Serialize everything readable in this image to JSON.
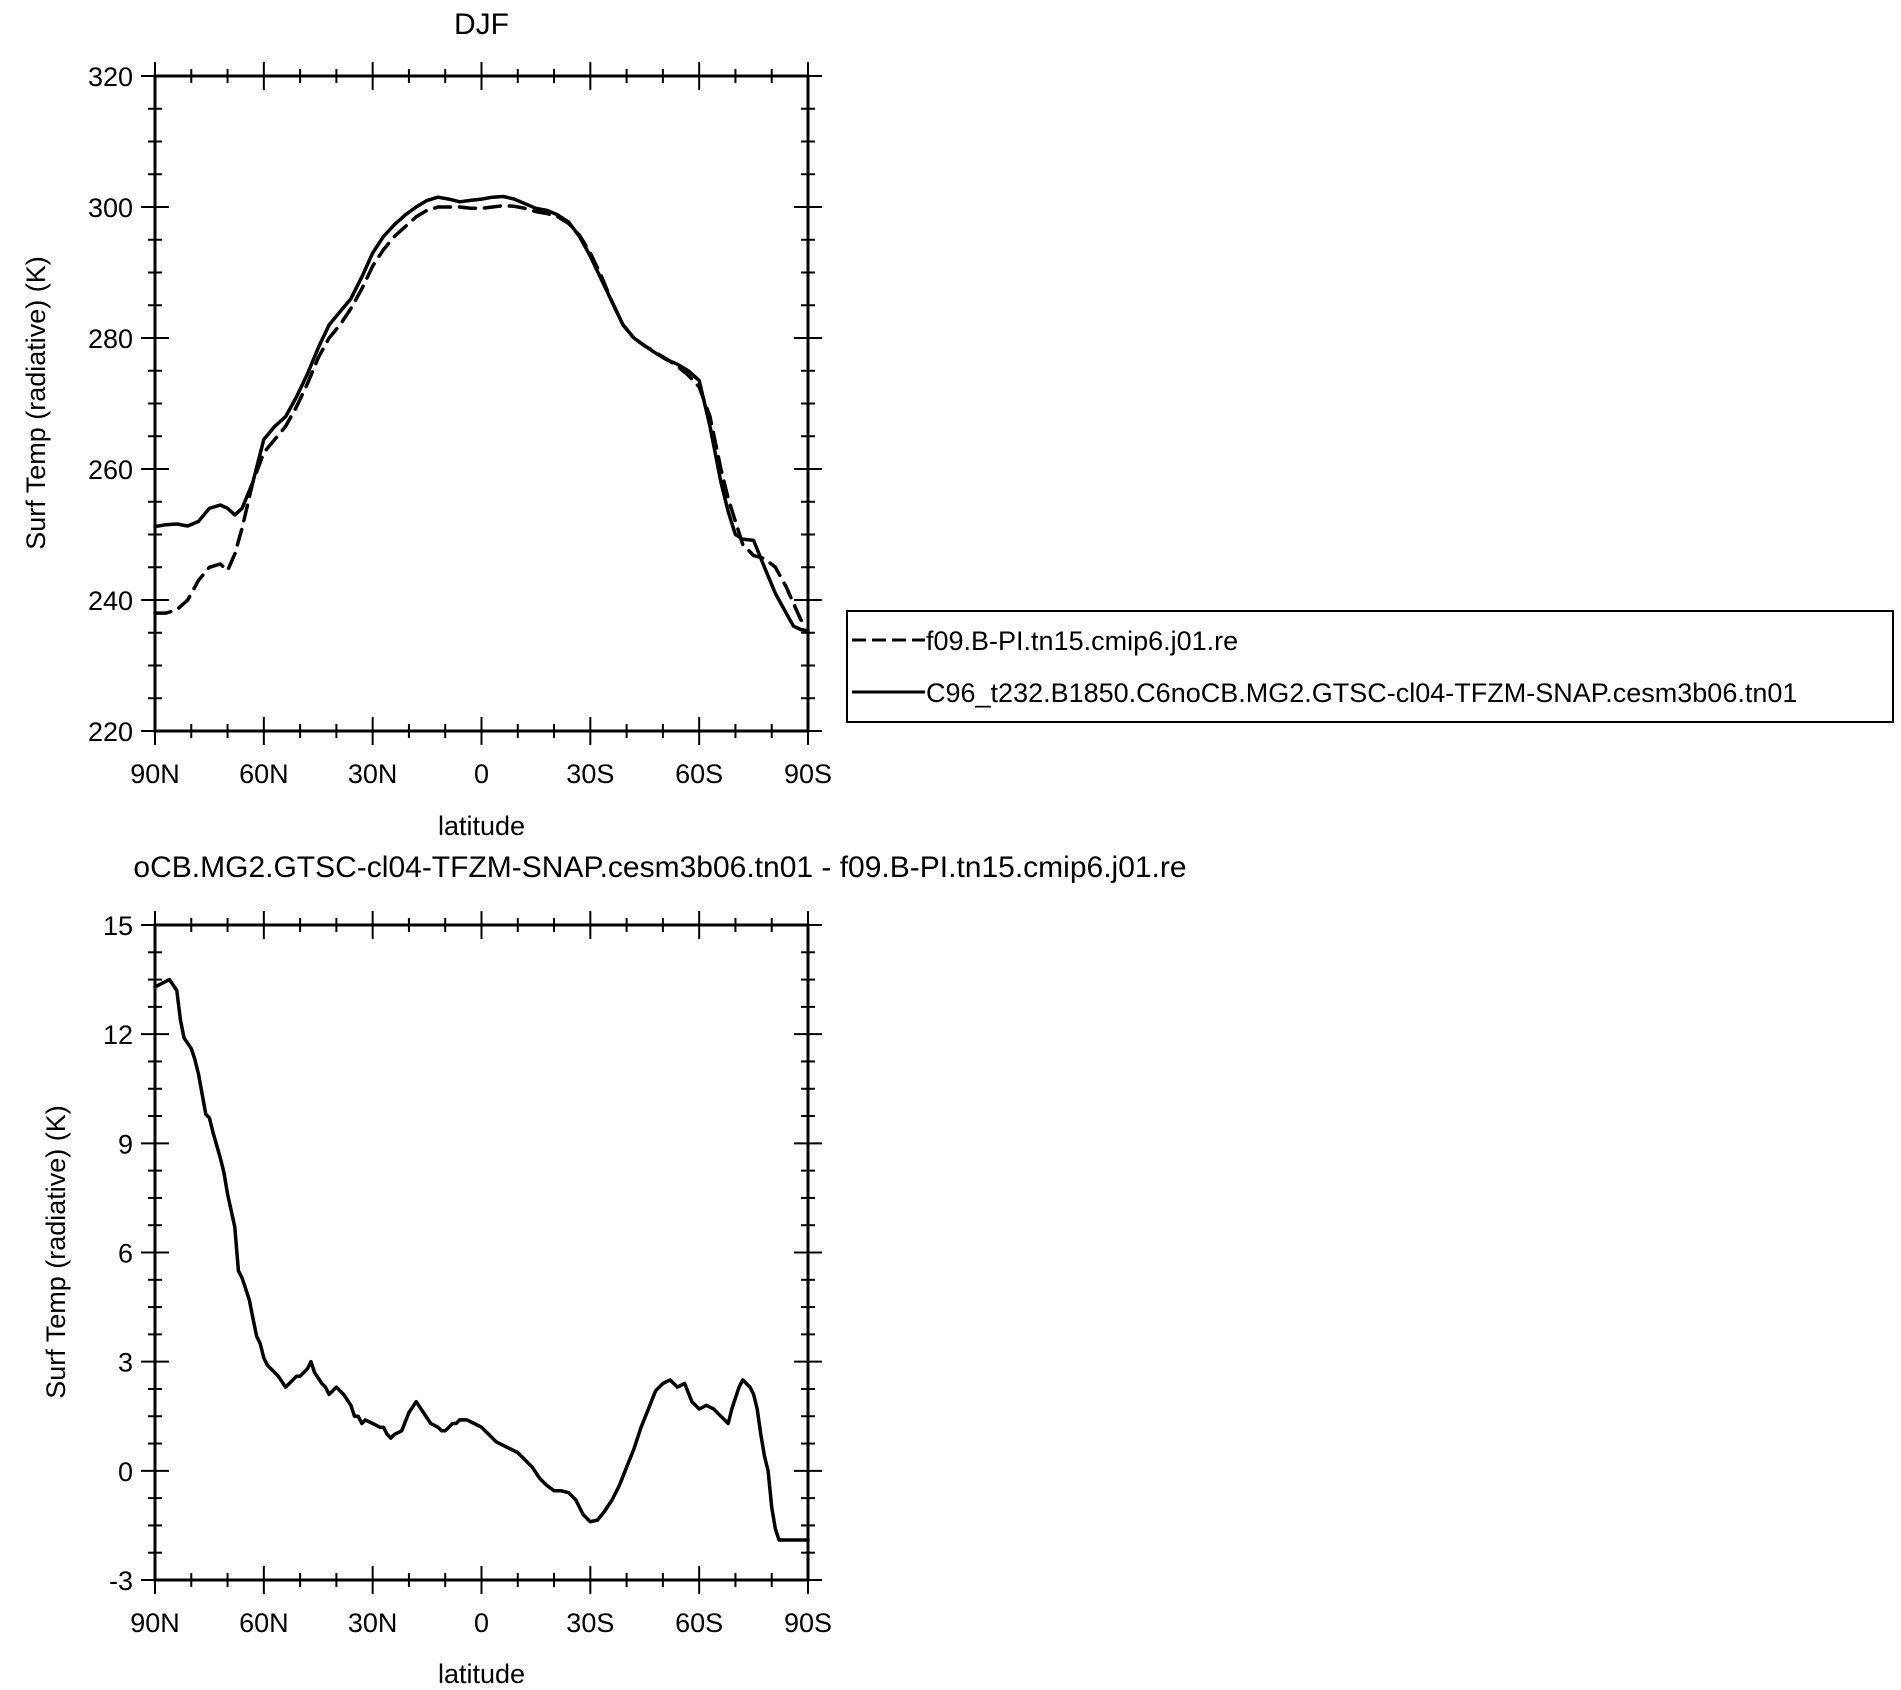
{
  "chart_data": [
    {
      "type": "line",
      "title": "DJF",
      "xlabel": "latitude",
      "ylabel": "Surf Temp (radiative) (K)",
      "xlim": [
        90,
        -90
      ],
      "ylim": [
        220,
        320
      ],
      "x_ticks": [
        90,
        60,
        30,
        0,
        -30,
        -60,
        -90
      ],
      "x_tick_labels": [
        "90N",
        "60N",
        "30N",
        "0",
        "30S",
        "60S",
        "90S"
      ],
      "y_ticks": [
        220,
        240,
        260,
        280,
        300,
        320
      ],
      "y_tick_labels": [
        "220",
        "240",
        "260",
        "280",
        "300",
        "320"
      ],
      "grid": false,
      "legend_position": "right",
      "series": [
        {
          "name": "f09.B-PI.tn15.cmip6.j01.re",
          "style": "dashed",
          "color": "#000000",
          "x": [
            90,
            87,
            84,
            81,
            78,
            75,
            72,
            70,
            68,
            66,
            63,
            60,
            57,
            54,
            51,
            48,
            45,
            42,
            39,
            36,
            33,
            30,
            27,
            24,
            21,
            18,
            15,
            12,
            9,
            6,
            3,
            0,
            -3,
            -6,
            -9,
            -12,
            -15,
            -18,
            -21,
            -24,
            -27,
            -30,
            -33,
            -36,
            -39,
            -42,
            -45,
            -48,
            -51,
            -54,
            -57,
            -60,
            -63,
            -66,
            -68,
            -70,
            -72,
            -75,
            -78,
            -81,
            -84,
            -86,
            -88,
            -90
          ],
          "values": [
            238,
            238,
            238.5,
            240,
            243,
            245,
            245.5,
            244.5,
            247,
            251,
            258,
            262.5,
            264.5,
            266.5,
            269.5,
            273,
            277,
            280,
            282,
            284.5,
            287.5,
            291,
            293.5,
            295.5,
            297,
            298.5,
            299.5,
            300,
            300,
            300,
            299.8,
            299.8,
            300,
            300.2,
            300.1,
            299.8,
            299.3,
            299,
            298.5,
            297.5,
            295.7,
            293,
            289.5,
            285.5,
            282,
            280,
            278.8,
            277.8,
            276.8,
            275.7,
            274.3,
            272.5,
            268,
            260,
            255.5,
            252,
            248.5,
            246.8,
            246.3,
            245,
            242,
            239.5,
            237,
            236
          ]
        },
        {
          "name": "C96_t232.B1850.C6noCB.MG2.GTSC-cl04-TFZM-SNAP.cesm3b06.tn01",
          "style": "solid",
          "color": "#000000",
          "x": [
            90,
            87,
            84,
            81,
            78,
            75,
            72,
            70,
            68,
            66,
            63,
            60,
            57,
            54,
            51,
            48,
            45,
            42,
            39,
            36,
            33,
            30,
            27,
            24,
            21,
            18,
            15,
            12,
            9,
            6,
            3,
            0,
            -3,
            -6,
            -9,
            -12,
            -15,
            -18,
            -21,
            -24,
            -27,
            -30,
            -33,
            -36,
            -39,
            -42,
            -45,
            -48,
            -51,
            -54,
            -57,
            -60,
            -63,
            -66,
            -68,
            -70,
            -72,
            -75,
            -78,
            -81,
            -84,
            -86,
            -88,
            -90
          ],
          "values": [
            251.2,
            251.5,
            251.6,
            251.3,
            252,
            254,
            254.5,
            254,
            253,
            254,
            258,
            264.5,
            266.5,
            268,
            271,
            274.5,
            278.5,
            282,
            284,
            286,
            289.3,
            293,
            295.5,
            297.3,
            298.8,
            300,
            301,
            301.5,
            301.2,
            300.8,
            301,
            301.2,
            301.5,
            301.6,
            301.2,
            300.5,
            299.8,
            299.5,
            298.8,
            297.7,
            295.5,
            292.5,
            289,
            285.5,
            282,
            280,
            278.8,
            277.7,
            276.7,
            276,
            275,
            273.5,
            266.5,
            258,
            253.5,
            250,
            249.3,
            249.1,
            245,
            241,
            238,
            236,
            235.5,
            235.3
          ]
        }
      ]
    },
    {
      "type": "line",
      "title": "oCB.MG2.GTSC-cl04-TFZM-SNAP.cesm3b06.tn01 - f09.B-PI.tn15.cmip6.j01.re",
      "xlabel": "latitude",
      "ylabel": "Surf Temp (radiative) (K)",
      "xlim": [
        90,
        -90
      ],
      "ylim": [
        -3,
        15
      ],
      "x_ticks": [
        90,
        60,
        30,
        0,
        -30,
        -60,
        -90
      ],
      "x_tick_labels": [
        "90N",
        "60N",
        "30N",
        "0",
        "30S",
        "60S",
        "90S"
      ],
      "y_ticks": [
        -3,
        0,
        3,
        6,
        9,
        12,
        15
      ],
      "y_tick_labels": [
        "-3",
        "0",
        "3",
        "6",
        "9",
        "12",
        "15"
      ],
      "grid": false,
      "series": [
        {
          "style": "solid",
          "color": "#000000",
          "x": [
            90,
            88,
            86,
            84,
            83,
            82,
            80,
            79,
            78,
            76,
            75,
            74,
            72,
            71,
            70,
            68,
            67,
            66,
            64,
            63,
            62,
            61,
            60,
            59,
            58,
            56,
            54,
            52,
            51,
            50,
            48,
            47,
            46,
            44,
            43,
            42,
            40,
            39,
            38,
            36,
            35,
            34,
            33,
            32,
            30,
            28,
            27,
            26,
            25,
            24,
            22,
            20,
            18,
            16,
            14,
            12,
            11,
            10,
            9,
            8,
            7,
            6,
            5,
            4,
            2,
            0,
            -2,
            -4,
            -6,
            -8,
            -10,
            -12,
            -14,
            -16,
            -18,
            -20,
            -22,
            -24,
            -26,
            -28,
            -30,
            -32,
            -34,
            -36,
            -38,
            -40,
            -42,
            -44,
            -46,
            -48,
            -50,
            -52,
            -54,
            -56,
            -58,
            -60,
            -62,
            -64,
            -66,
            -68,
            -69,
            -70,
            -71,
            -72,
            -73,
            -74,
            -75,
            -76,
            -77,
            -78,
            -79,
            -80,
            -81,
            -82,
            -83,
            -84,
            -85,
            -86,
            -87,
            -88,
            -89,
            -90
          ],
          "values": [
            13.3,
            13.4,
            13.5,
            13.2,
            12.4,
            11.9,
            11.6,
            11.3,
            10.9,
            9.8,
            9.7,
            9.3,
            8.6,
            8.2,
            7.6,
            6.7,
            5.5,
            5.3,
            4.7,
            4.2,
            3.7,
            3.5,
            3.1,
            2.9,
            2.8,
            2.6,
            2.3,
            2.5,
            2.6,
            2.6,
            2.8,
            3.0,
            2.7,
            2.4,
            2.3,
            2.1,
            2.3,
            2.2,
            2.1,
            1.8,
            1.5,
            1.5,
            1.3,
            1.4,
            1.3,
            1.2,
            1.2,
            1.0,
            0.9,
            1.0,
            1.1,
            1.6,
            1.9,
            1.6,
            1.3,
            1.2,
            1.1,
            1.1,
            1.2,
            1.3,
            1.3,
            1.4,
            1.4,
            1.4,
            1.3,
            1.2,
            1.0,
            0.8,
            0.7,
            0.6,
            0.5,
            0.3,
            0.1,
            -0.2,
            -0.4,
            -0.55,
            -0.55,
            -0.6,
            -0.8,
            -1.2,
            -1.4,
            -1.35,
            -1.1,
            -0.8,
            -0.4,
            0.1,
            0.6,
            1.2,
            1.7,
            2.2,
            2.4,
            2.5,
            2.3,
            2.4,
            1.9,
            1.7,
            1.8,
            1.7,
            1.5,
            1.3,
            1.7,
            2.0,
            2.3,
            2.5,
            2.4,
            2.3,
            2.1,
            1.7,
            1.0,
            0.4,
            0.0,
            -1.0,
            -1.6,
            -1.9,
            -1.9,
            -1.9,
            -1.9,
            -1.9,
            -1.9,
            -1.9,
            -1.9,
            -1.9
          ]
        }
      ]
    }
  ]
}
